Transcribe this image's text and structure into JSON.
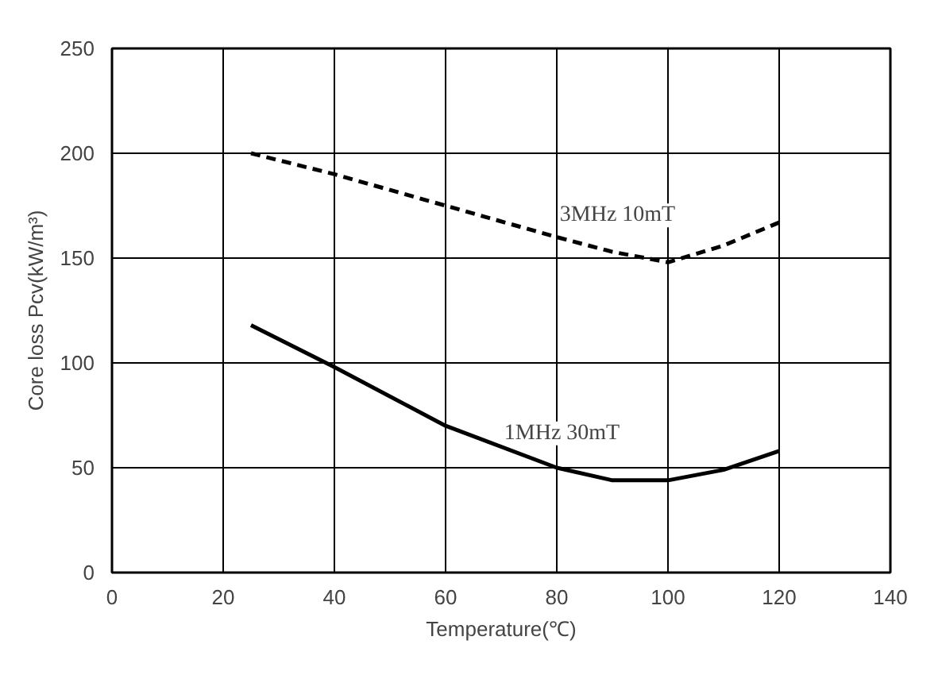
{
  "chart_data": {
    "type": "line",
    "xlabel": "Temperature(℃)",
    "ylabel": "Core loss Pcv(kW/m³)",
    "xlim": [
      0,
      140
    ],
    "ylim": [
      0,
      250
    ],
    "xticks": [
      0,
      20,
      40,
      60,
      80,
      100,
      120,
      140
    ],
    "yticks": [
      0,
      50,
      100,
      150,
      200,
      250
    ],
    "grid": true,
    "series": [
      {
        "name": "3MHz  10mT",
        "color": "#000000",
        "line_style": "dashed",
        "x": [
          25,
          40,
          60,
          80,
          90,
          100,
          110,
          120
        ],
        "values": [
          200,
          190,
          175,
          160,
          153,
          148,
          156,
          167
        ]
      },
      {
        "name": "1MHz  30mT",
        "color": "#000000",
        "line_style": "solid",
        "x": [
          25,
          40,
          60,
          80,
          90,
          100,
          110,
          120
        ],
        "values": [
          118,
          98,
          70,
          50,
          44,
          44,
          49,
          58
        ]
      }
    ]
  }
}
